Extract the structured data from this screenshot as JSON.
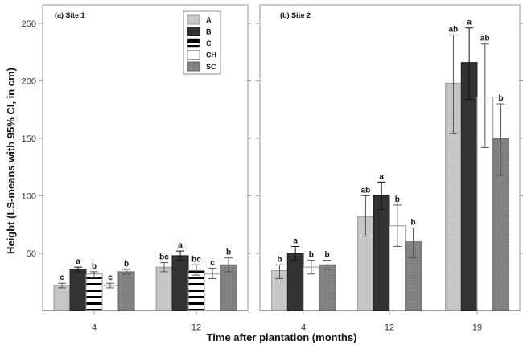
{
  "chart_data": {
    "type": "bar",
    "ylabel": "Height (LS-means with 95% CI, in cm)",
    "xlabel": "Time after plantation (months)",
    "ylim": [
      0,
      260
    ],
    "yticks": [
      50,
      100,
      150,
      200,
      250
    ],
    "legend": {
      "placement": "top-right of panel (a)",
      "entries": [
        {
          "key": "A",
          "label": "A",
          "color": "#c4c4c4",
          "pattern": "solid"
        },
        {
          "key": "B",
          "label": "B",
          "color": "#333333",
          "pattern": "solid"
        },
        {
          "key": "C",
          "label": "C",
          "color": "#ffffff",
          "pattern": "horizontal-stripes"
        },
        {
          "key": "CH",
          "label": "CH",
          "color": "#ffffff",
          "pattern": "solid"
        },
        {
          "key": "SC",
          "label": "SC",
          "color": "#808080",
          "pattern": "solid"
        }
      ]
    },
    "panels": [
      {
        "title": "(a)  Site 1",
        "categories": [
          "4",
          "12"
        ],
        "series": [
          {
            "name": "A",
            "values": [
              22,
              38
            ],
            "ci_low": [
              20,
              34
            ],
            "ci_high": [
              24,
              42
            ],
            "letters": [
              "c",
              "bc"
            ]
          },
          {
            "name": "B",
            "values": [
              36,
              48
            ],
            "ci_low": [
              34,
              44
            ],
            "ci_high": [
              38,
              52
            ],
            "letters": [
              "a",
              "a"
            ]
          },
          {
            "name": "C",
            "values": [
              32,
              35
            ],
            "ci_low": [
              29,
              31
            ],
            "ci_high": [
              34,
              40
            ],
            "letters": [
              "b",
              "bc"
            ]
          },
          {
            "name": "CH",
            "values": [
              22,
              32
            ],
            "ci_low": [
              20,
              28
            ],
            "ci_high": [
              24,
              37
            ],
            "letters": [
              "c",
              "c"
            ]
          },
          {
            "name": "SC",
            "values": [
              34,
              40
            ],
            "ci_low": [
              32,
              34
            ],
            "ci_high": [
              36,
              46
            ],
            "letters": [
              "b",
              "b"
            ]
          }
        ]
      },
      {
        "title": "(b)  Site 2",
        "categories": [
          "4",
          "12",
          "19"
        ],
        "series": [
          {
            "name": "A",
            "values": [
              35,
              82,
              198
            ],
            "ci_low": [
              28,
              65,
              154
            ],
            "ci_high": [
              40,
              100,
              240
            ],
            "letters": [
              "b",
              "ab",
              "ab"
            ]
          },
          {
            "name": "B",
            "values": [
              50,
              100,
              216
            ],
            "ci_low": [
              44,
              88,
              184
            ],
            "ci_high": [
              56,
              112,
              246
            ],
            "letters": [
              "a",
              "a",
              "a"
            ]
          },
          {
            "name": "CH",
            "values": [
              38,
              74,
              186
            ],
            "ci_low": [
              32,
              56,
              142
            ],
            "ci_high": [
              44,
              92,
              232
            ],
            "letters": [
              "b",
              "b",
              "ab"
            ]
          },
          {
            "name": "SC",
            "values": [
              40,
              60,
              150
            ],
            "ci_low": [
              36,
              46,
              118
            ],
            "ci_high": [
              44,
              72,
              180
            ],
            "letters": [
              "b",
              "b",
              "b"
            ]
          }
        ]
      }
    ]
  }
}
